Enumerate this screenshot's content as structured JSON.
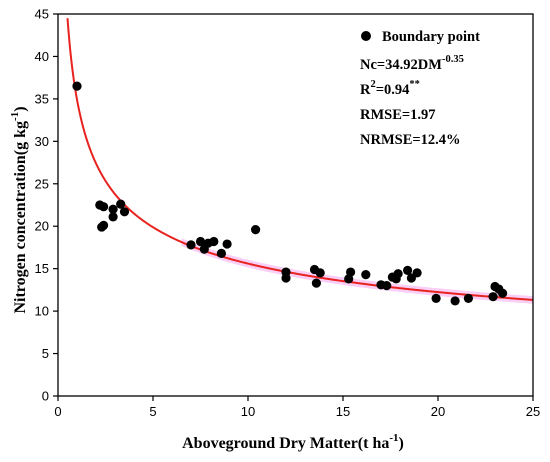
{
  "chart_data": {
    "type": "scatter",
    "xlabel_main": "Aboveground Dry Matter(t ha",
    "xlabel_sup": "-1",
    "xlabel_end": ")",
    "ylabel_main": "Nitrogen concentration(g kg",
    "ylabel_sup": "-1",
    "ylabel_end": ")",
    "xlim": [
      0,
      25
    ],
    "ylim": [
      0,
      45
    ],
    "xticks": [
      0,
      5,
      10,
      15,
      20,
      25
    ],
    "yticks": [
      0,
      5,
      10,
      15,
      20,
      25,
      30,
      35,
      40,
      45
    ],
    "legend_position": "top-right",
    "series": [
      {
        "name": "Boundary point",
        "color": "#000000",
        "x": [
          1.0,
          2.2,
          2.4,
          2.3,
          2.4,
          2.9,
          2.9,
          3.3,
          3.5,
          7.0,
          7.5,
          7.7,
          7.9,
          8.2,
          8.6,
          8.9,
          10.4,
          12.0,
          12.0,
          13.5,
          13.6,
          13.8,
          15.3,
          15.4,
          16.2,
          17.0,
          17.3,
          17.6,
          17.8,
          17.9,
          18.4,
          18.6,
          18.9,
          19.9,
          20.9,
          21.6,
          22.9,
          23.0,
          23.2,
          23.4
        ],
        "y": [
          36.5,
          22.5,
          22.3,
          19.9,
          20.1,
          21.1,
          22.0,
          22.6,
          21.7,
          17.8,
          18.2,
          17.3,
          18.0,
          18.2,
          16.8,
          17.9,
          19.6,
          13.9,
          14.6,
          14.9,
          13.3,
          14.5,
          13.8,
          14.6,
          14.3,
          13.1,
          13.0,
          14.0,
          13.8,
          14.4,
          14.8,
          13.9,
          14.5,
          11.5,
          11.2,
          11.5,
          11.7,
          12.9,
          12.6,
          12.1
        ]
      }
    ],
    "fit_curve": {
      "color": "#e8231f",
      "a": 34.92,
      "b": -0.35,
      "band_color": "#f4a6f1"
    },
    "annotations": {
      "eq_main": "Nc=34.92DM",
      "eq_sup": "-0.35",
      "r2_main": "R",
      "r2_sup": "2",
      "r2_val": "=0.94",
      "r2_star": "**",
      "rmse": "RMSE=1.97",
      "nrmse": "NRMSE=12.4%"
    }
  }
}
